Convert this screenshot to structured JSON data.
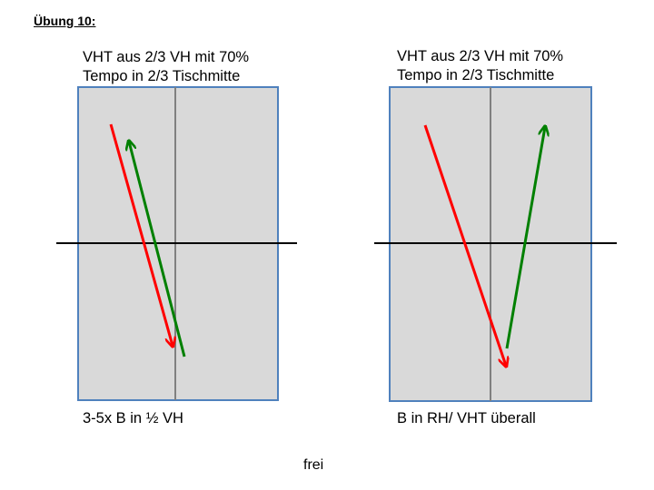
{
  "title": "Übung 10:",
  "left": {
    "top_line1": "VHT aus 2/3 VH mit 70%",
    "top_line2": "Tempo in 2/3 Tischmitte",
    "bottom": "3-5x B in ½ VH"
  },
  "right": {
    "top_line1": "VHT aus 2/3 VH mit 70%",
    "top_line2": "Tempo in 2/3 Tischmitte",
    "bottom": "B in RH/ VHT überall"
  },
  "footer": "frei",
  "colors": {
    "table_fill": "#d9d9d9",
    "table_border": "#4f81bd",
    "center_line": "#808080",
    "net": "#000000",
    "red_arrow": "#ff0000",
    "green_arrow": "#008000"
  }
}
